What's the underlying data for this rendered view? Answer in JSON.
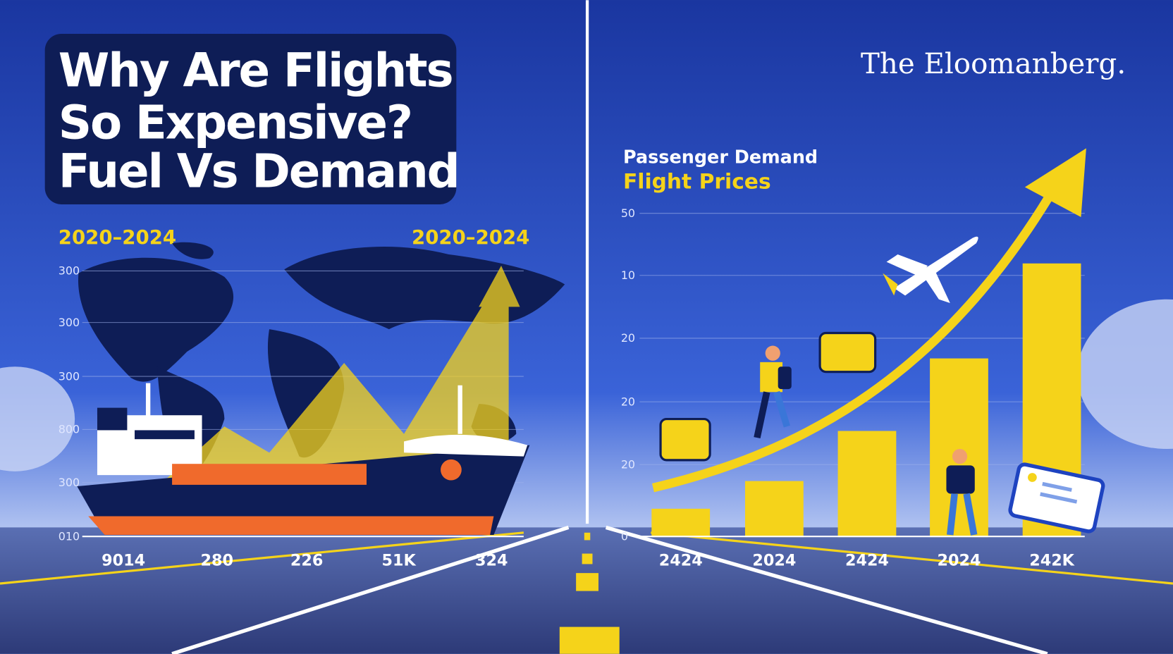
{
  "header": {
    "title_lines": [
      "Why Are Flights",
      "So Expensive?",
      "Fuel Vs Demand"
    ],
    "brand": "The Eloomanberg."
  },
  "left_panel": {
    "period_left": "2020–2024",
    "period_right": "2020–2024",
    "y_labels": [
      "300",
      "300",
      "300",
      "800",
      "300",
      "010"
    ],
    "x_labels": [
      "9014",
      "280",
      "226",
      "51K",
      "324"
    ]
  },
  "right_panel": {
    "legend": [
      "Passenger Demand",
      "Flight Prices"
    ],
    "y_labels": [
      "50",
      "10",
      "20",
      "20",
      "20",
      "0"
    ],
    "x_labels": [
      "2424",
      "2024",
      "2424",
      "2024",
      "242K"
    ]
  }
}
